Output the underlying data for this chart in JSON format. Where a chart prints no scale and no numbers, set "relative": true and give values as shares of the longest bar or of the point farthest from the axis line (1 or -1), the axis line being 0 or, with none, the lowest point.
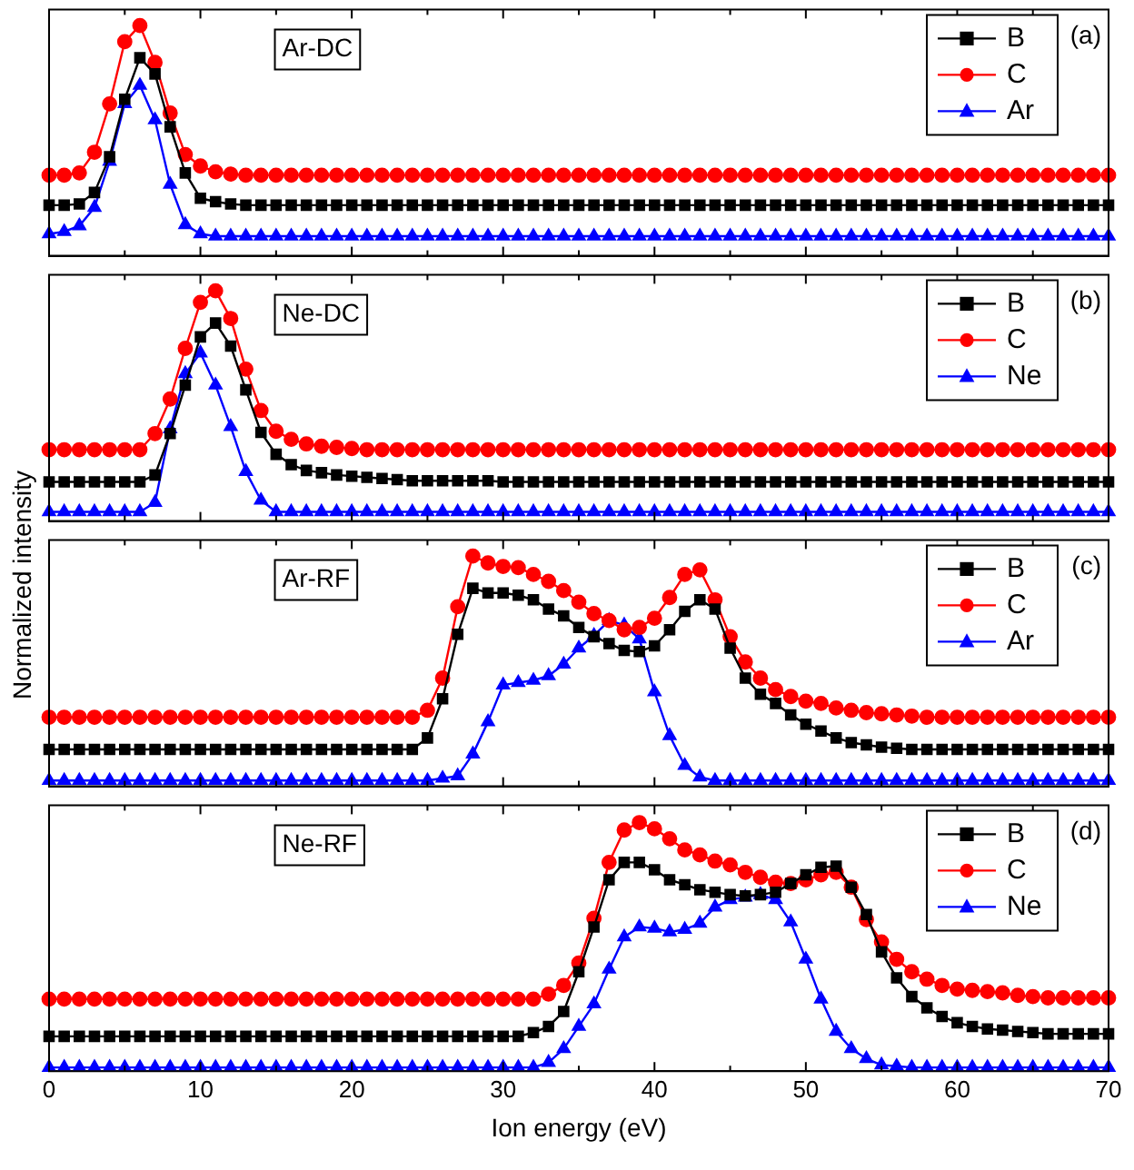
{
  "chart_data": [
    {
      "type": "line",
      "relative": true,
      "legend": "top right",
      "tick_labels": false,
      "annotations": [
        "Ar-DC",
        "(a)"
      ],
      "xlim": [
        0,
        70
      ],
      "xticks": [
        0,
        {
          "value": 5,
          "label": null
        },
        10,
        {
          "value": 15,
          "label": null
        },
        20,
        {
          "value": 25,
          "label": null
        },
        30,
        {
          "value": 35,
          "label": null
        },
        40,
        {
          "value": 45,
          "label": null
        },
        50,
        {
          "value": 55,
          "label": null
        },
        60,
        {
          "value": 65,
          "label": null
        },
        70
      ],
      "x": [
        0,
        1,
        2,
        3,
        4,
        5,
        6,
        7,
        8,
        9,
        10,
        11,
        12,
        13,
        14,
        15,
        16,
        17,
        18,
        19,
        20,
        21,
        22,
        23,
        24,
        25,
        26,
        27,
        28,
        29,
        30,
        31,
        32,
        33,
        34,
        35,
        36,
        37,
        38,
        39,
        40,
        41,
        42,
        43,
        44,
        45,
        46,
        47,
        48,
        49,
        50,
        51,
        52,
        53,
        54,
        55,
        56,
        57,
        58,
        59,
        60,
        61,
        62,
        63,
        64,
        65,
        66,
        67,
        68,
        69,
        70
      ],
      "series": [
        {
          "name": "B",
          "color": "#000000",
          "marker": "square",
          "values": [
            0.22,
            0.22,
            0.225,
            0.275,
            0.43,
            0.68,
            0.86,
            0.79,
            0.56,
            0.36,
            0.25,
            0.235,
            0.225,
            0.22,
            0.22,
            0.22,
            0.22,
            0.22,
            0.22,
            0.22,
            0.22,
            0.22,
            0.22,
            0.22,
            0.22,
            0.22,
            0.22,
            0.22,
            0.22,
            0.22,
            0.22,
            0.22,
            0.22,
            0.22,
            0.22,
            0.22,
            0.22,
            0.22,
            0.22,
            0.22,
            0.22,
            0.22,
            0.22,
            0.22,
            0.22,
            0.22,
            0.22,
            0.22,
            0.22,
            0.22,
            0.22,
            0.22,
            0.22,
            0.22,
            0.22,
            0.22,
            0.22,
            0.22,
            0.22,
            0.22,
            0.22,
            0.22,
            0.22,
            0.22,
            0.22,
            0.22,
            0.22,
            0.22,
            0.22,
            0.22,
            0.22
          ]
        },
        {
          "name": "C",
          "color": "#ff0000",
          "marker": "circle",
          "values": [
            0.35,
            0.35,
            0.36,
            0.45,
            0.66,
            0.93,
            1,
            0.84,
            0.62,
            0.44,
            0.39,
            0.365,
            0.355,
            0.35,
            0.35,
            0.35,
            0.35,
            0.35,
            0.35,
            0.35,
            0.35,
            0.35,
            0.35,
            0.35,
            0.35,
            0.35,
            0.35,
            0.35,
            0.35,
            0.35,
            0.35,
            0.35,
            0.35,
            0.35,
            0.35,
            0.35,
            0.35,
            0.35,
            0.35,
            0.35,
            0.35,
            0.35,
            0.35,
            0.35,
            0.35,
            0.35,
            0.35,
            0.35,
            0.35,
            0.35,
            0.35,
            0.35,
            0.35,
            0.35,
            0.35,
            0.35,
            0.35,
            0.35,
            0.35,
            0.35,
            0.35,
            0.35,
            0.35,
            0.35,
            0.35,
            0.35,
            0.35,
            0.35,
            0.35,
            0.35,
            0.35
          ]
        },
        {
          "name": "Ar",
          "color": "#0000ff",
          "marker": "triangle",
          "values": [
            0.095,
            0.105,
            0.13,
            0.21,
            0.41,
            0.66,
            0.74,
            0.59,
            0.31,
            0.135,
            0.095,
            0.085,
            0.085,
            0.085,
            0.085,
            0.085,
            0.085,
            0.085,
            0.085,
            0.085,
            0.085,
            0.085,
            0.085,
            0.085,
            0.085,
            0.085,
            0.085,
            0.085,
            0.085,
            0.085,
            0.085,
            0.085,
            0.085,
            0.085,
            0.085,
            0.085,
            0.085,
            0.085,
            0.085,
            0.085,
            0.085,
            0.085,
            0.085,
            0.085,
            0.085,
            0.085,
            0.085,
            0.085,
            0.085,
            0.085,
            0.085,
            0.085,
            0.085,
            0.085,
            0.085,
            0.085,
            0.085,
            0.085,
            0.085,
            0.085,
            0.085,
            0.085,
            0.085,
            0.085,
            0.085,
            0.085,
            0.085,
            0.085,
            0.085,
            0.085,
            0.085
          ]
        }
      ]
    },
    {
      "type": "line",
      "relative": true,
      "legend": "top right",
      "tick_labels": false,
      "annotations": [
        "Ne-DC",
        "(b)"
      ],
      "xlim": [
        0,
        70
      ],
      "xticks": [
        0,
        {
          "value": 5,
          "label": null
        },
        10,
        {
          "value": 15,
          "label": null
        },
        20,
        {
          "value": 25,
          "label": null
        },
        30,
        {
          "value": 35,
          "label": null
        },
        40,
        {
          "value": 45,
          "label": null
        },
        50,
        {
          "value": 55,
          "label": null
        },
        60,
        {
          "value": 65,
          "label": null
        },
        70
      ],
      "x": [
        0,
        1,
        2,
        3,
        4,
        5,
        6,
        7,
        8,
        9,
        10,
        11,
        12,
        13,
        14,
        15,
        16,
        17,
        18,
        19,
        20,
        21,
        22,
        23,
        24,
        25,
        26,
        27,
        28,
        29,
        30,
        31,
        32,
        33,
        34,
        35,
        36,
        37,
        38,
        39,
        40,
        41,
        42,
        43,
        44,
        45,
        46,
        47,
        48,
        49,
        50,
        51,
        52,
        53,
        54,
        55,
        56,
        57,
        58,
        59,
        60,
        61,
        62,
        63,
        64,
        65,
        66,
        67,
        68,
        69,
        70
      ],
      "series": [
        {
          "name": "B",
          "color": "#000000",
          "marker": "square",
          "values": [
            0.17,
            0.17,
            0.17,
            0.17,
            0.17,
            0.17,
            0.17,
            0.2,
            0.38,
            0.59,
            0.8,
            0.86,
            0.76,
            0.57,
            0.385,
            0.29,
            0.245,
            0.22,
            0.21,
            0.2,
            0.195,
            0.19,
            0.185,
            0.18,
            0.175,
            0.175,
            0.175,
            0.175,
            0.175,
            0.175,
            0.17,
            0.17,
            0.17,
            0.17,
            0.17,
            0.17,
            0.17,
            0.17,
            0.17,
            0.17,
            0.17,
            0.17,
            0.17,
            0.17,
            0.17,
            0.17,
            0.17,
            0.17,
            0.17,
            0.17,
            0.17,
            0.17,
            0.17,
            0.17,
            0.17,
            0.17,
            0.17,
            0.17,
            0.17,
            0.17,
            0.17,
            0.17,
            0.17,
            0.17,
            0.17,
            0.17,
            0.17,
            0.17,
            0.17,
            0.17,
            0.17
          ]
        },
        {
          "name": "C",
          "color": "#ff0000",
          "marker": "circle",
          "values": [
            0.31,
            0.31,
            0.31,
            0.31,
            0.31,
            0.31,
            0.31,
            0.38,
            0.53,
            0.75,
            0.95,
            1,
            0.88,
            0.66,
            0.48,
            0.39,
            0.355,
            0.335,
            0.325,
            0.32,
            0.315,
            0.31,
            0.31,
            0.31,
            0.31,
            0.31,
            0.31,
            0.31,
            0.31,
            0.31,
            0.31,
            0.31,
            0.31,
            0.31,
            0.31,
            0.31,
            0.31,
            0.31,
            0.31,
            0.31,
            0.31,
            0.31,
            0.31,
            0.31,
            0.31,
            0.31,
            0.31,
            0.31,
            0.31,
            0.31,
            0.31,
            0.31,
            0.31,
            0.31,
            0.31,
            0.31,
            0.31,
            0.31,
            0.31,
            0.31,
            0.31,
            0.31,
            0.31,
            0.31,
            0.31,
            0.31,
            0.31,
            0.31,
            0.31,
            0.31,
            0.31
          ]
        },
        {
          "name": "Ne",
          "color": "#0000ff",
          "marker": "triangle",
          "values": [
            0.04,
            0.04,
            0.04,
            0.04,
            0.04,
            0.04,
            0.04,
            0.08,
            0.4,
            0.64,
            0.73,
            0.59,
            0.41,
            0.215,
            0.09,
            0.04,
            0.04,
            0.04,
            0.04,
            0.04,
            0.04,
            0.04,
            0.04,
            0.04,
            0.04,
            0.04,
            0.04,
            0.04,
            0.04,
            0.04,
            0.04,
            0.04,
            0.04,
            0.04,
            0.04,
            0.04,
            0.04,
            0.04,
            0.04,
            0.04,
            0.04,
            0.04,
            0.04,
            0.04,
            0.04,
            0.04,
            0.04,
            0.04,
            0.04,
            0.04,
            0.04,
            0.04,
            0.04,
            0.04,
            0.04,
            0.04,
            0.04,
            0.04,
            0.04,
            0.04,
            0.04,
            0.04,
            0.04,
            0.04,
            0.04,
            0.04,
            0.04,
            0.04,
            0.04,
            0.04,
            0.04
          ]
        }
      ]
    },
    {
      "type": "line",
      "relative": true,
      "legend": "top right",
      "tick_labels": false,
      "ylabel": "Normalized intensity",
      "annotations": [
        "Ar-RF",
        "(c)"
      ],
      "xlim": [
        0,
        70
      ],
      "xticks": [
        0,
        {
          "value": 5,
          "label": null
        },
        10,
        {
          "value": 15,
          "label": null
        },
        20,
        {
          "value": 25,
          "label": null
        },
        30,
        {
          "value": 35,
          "label": null
        },
        40,
        {
          "value": 45,
          "label": null
        },
        50,
        {
          "value": 55,
          "label": null
        },
        60,
        {
          "value": 65,
          "label": null
        },
        70
      ],
      "x": [
        0,
        1,
        2,
        3,
        4,
        5,
        6,
        7,
        8,
        9,
        10,
        11,
        12,
        13,
        14,
        15,
        16,
        17,
        18,
        19,
        20,
        21,
        22,
        23,
        24,
        25,
        26,
        27,
        28,
        29,
        30,
        31,
        32,
        33,
        34,
        35,
        36,
        37,
        38,
        39,
        40,
        41,
        42,
        43,
        44,
        45,
        46,
        47,
        48,
        49,
        50,
        51,
        52,
        53,
        54,
        55,
        56,
        57,
        58,
        59,
        60,
        61,
        62,
        63,
        64,
        65,
        66,
        67,
        68,
        69,
        70
      ],
      "series": [
        {
          "name": "B",
          "color": "#000000",
          "marker": "square",
          "values": [
            0.16,
            0.16,
            0.16,
            0.16,
            0.16,
            0.16,
            0.16,
            0.16,
            0.16,
            0.16,
            0.16,
            0.16,
            0.16,
            0.16,
            0.16,
            0.16,
            0.16,
            0.16,
            0.16,
            0.16,
            0.16,
            0.16,
            0.16,
            0.16,
            0.16,
            0.21,
            0.38,
            0.66,
            0.86,
            0.84,
            0.84,
            0.83,
            0.81,
            0.77,
            0.74,
            0.69,
            0.65,
            0.62,
            0.59,
            0.585,
            0.61,
            0.68,
            0.76,
            0.81,
            0.77,
            0.6,
            0.47,
            0.4,
            0.36,
            0.31,
            0.27,
            0.24,
            0.21,
            0.19,
            0.18,
            0.17,
            0.165,
            0.16,
            0.16,
            0.16,
            0.16,
            0.16,
            0.16,
            0.16,
            0.16,
            0.16,
            0.16,
            0.16,
            0.16,
            0.16,
            0.16
          ]
        },
        {
          "name": "C",
          "color": "#ff0000",
          "marker": "circle",
          "values": [
            0.3,
            0.3,
            0.3,
            0.3,
            0.3,
            0.3,
            0.3,
            0.3,
            0.3,
            0.3,
            0.3,
            0.3,
            0.3,
            0.3,
            0.3,
            0.3,
            0.3,
            0.3,
            0.3,
            0.3,
            0.3,
            0.3,
            0.3,
            0.3,
            0.3,
            0.33,
            0.47,
            0.78,
            1,
            0.97,
            0.955,
            0.95,
            0.92,
            0.89,
            0.85,
            0.8,
            0.75,
            0.72,
            0.68,
            0.69,
            0.73,
            0.82,
            0.92,
            0.94,
            0.81,
            0.65,
            0.54,
            0.47,
            0.42,
            0.39,
            0.37,
            0.36,
            0.34,
            0.33,
            0.32,
            0.315,
            0.31,
            0.305,
            0.3,
            0.3,
            0.3,
            0.3,
            0.3,
            0.3,
            0.3,
            0.3,
            0.3,
            0.3,
            0.3,
            0.3,
            0.3
          ]
        },
        {
          "name": "Ar",
          "color": "#0000ff",
          "marker": "triangle",
          "values": [
            0.025,
            0.025,
            0.025,
            0.025,
            0.025,
            0.025,
            0.025,
            0.025,
            0.025,
            0.025,
            0.025,
            0.025,
            0.025,
            0.025,
            0.025,
            0.025,
            0.025,
            0.025,
            0.025,
            0.025,
            0.025,
            0.025,
            0.025,
            0.025,
            0.025,
            0.025,
            0.035,
            0.045,
            0.14,
            0.28,
            0.44,
            0.45,
            0.46,
            0.48,
            0.53,
            0.6,
            0.655,
            0.72,
            0.7,
            0.64,
            0.41,
            0.22,
            0.09,
            0.04,
            0.025,
            0.025,
            0.025,
            0.025,
            0.025,
            0.025,
            0.025,
            0.025,
            0.025,
            0.025,
            0.025,
            0.025,
            0.025,
            0.025,
            0.025,
            0.025,
            0.025,
            0.025,
            0.025,
            0.025,
            0.025,
            0.025,
            0.025,
            0.025,
            0.025,
            0.025,
            0.025
          ]
        }
      ]
    },
    {
      "type": "line",
      "relative": true,
      "legend": "top right",
      "tick_labels": "x",
      "xlabel": "Ion energy (eV)",
      "annotations": [
        "Ne-RF",
        "(d)"
      ],
      "xlim": [
        0,
        70
      ],
      "xticks": [
        0,
        {
          "value": 5,
          "label": null
        },
        10,
        {
          "value": 15,
          "label": null
        },
        20,
        {
          "value": 25,
          "label": null
        },
        30,
        {
          "value": 35,
          "label": null
        },
        40,
        {
          "value": 45,
          "label": null
        },
        50,
        {
          "value": 55,
          "label": null
        },
        60,
        {
          "value": 65,
          "label": null
        },
        70
      ],
      "x": [
        0,
        1,
        2,
        3,
        4,
        5,
        6,
        7,
        8,
        9,
        10,
        11,
        12,
        13,
        14,
        15,
        16,
        17,
        18,
        19,
        20,
        21,
        22,
        23,
        24,
        25,
        26,
        27,
        28,
        29,
        30,
        31,
        32,
        33,
        34,
        35,
        36,
        37,
        38,
        39,
        40,
        41,
        42,
        43,
        44,
        45,
        46,
        47,
        48,
        49,
        50,
        51,
        52,
        53,
        54,
        55,
        56,
        57,
        58,
        59,
        60,
        61,
        62,
        63,
        64,
        65,
        66,
        67,
        68,
        69,
        70
      ],
      "series": [
        {
          "name": "B",
          "color": "#000000",
          "marker": "square",
          "values": [
            0.14,
            0.14,
            0.14,
            0.14,
            0.14,
            0.14,
            0.14,
            0.14,
            0.14,
            0.14,
            0.14,
            0.14,
            0.14,
            0.14,
            0.14,
            0.14,
            0.14,
            0.14,
            0.14,
            0.14,
            0.14,
            0.14,
            0.14,
            0.14,
            0.14,
            0.14,
            0.14,
            0.14,
            0.14,
            0.14,
            0.14,
            0.14,
            0.155,
            0.18,
            0.24,
            0.4,
            0.58,
            0.77,
            0.84,
            0.84,
            0.81,
            0.77,
            0.75,
            0.73,
            0.72,
            0.71,
            0.705,
            0.71,
            0.72,
            0.755,
            0.79,
            0.82,
            0.825,
            0.74,
            0.63,
            0.48,
            0.375,
            0.3,
            0.255,
            0.22,
            0.195,
            0.18,
            0.17,
            0.165,
            0.16,
            0.155,
            0.15,
            0.15,
            0.15,
            0.15,
            0.15
          ]
        },
        {
          "name": "C",
          "color": "#ff0000",
          "marker": "circle",
          "values": [
            0.29,
            0.29,
            0.29,
            0.29,
            0.29,
            0.29,
            0.29,
            0.29,
            0.29,
            0.29,
            0.29,
            0.29,
            0.29,
            0.29,
            0.29,
            0.29,
            0.29,
            0.29,
            0.29,
            0.29,
            0.29,
            0.29,
            0.29,
            0.29,
            0.29,
            0.29,
            0.29,
            0.29,
            0.29,
            0.29,
            0.29,
            0.29,
            0.29,
            0.31,
            0.345,
            0.435,
            0.615,
            0.84,
            0.97,
            1,
            0.975,
            0.935,
            0.89,
            0.87,
            0.845,
            0.83,
            0.8,
            0.78,
            0.76,
            0.755,
            0.77,
            0.79,
            0.8,
            0.74,
            0.61,
            0.52,
            0.45,
            0.4,
            0.37,
            0.345,
            0.33,
            0.325,
            0.32,
            0.315,
            0.305,
            0.3,
            0.295,
            0.295,
            0.295,
            0.295,
            0.295
          ]
        },
        {
          "name": "Ne",
          "color": "#0000ff",
          "marker": "triangle",
          "values": [
            0.015,
            0.015,
            0.015,
            0.015,
            0.015,
            0.015,
            0.015,
            0.015,
            0.015,
            0.015,
            0.015,
            0.015,
            0.015,
            0.015,
            0.015,
            0.015,
            0.015,
            0.015,
            0.015,
            0.015,
            0.015,
            0.015,
            0.015,
            0.015,
            0.015,
            0.015,
            0.015,
            0.015,
            0.015,
            0.015,
            0.015,
            0.015,
            0.015,
            0.035,
            0.09,
            0.18,
            0.27,
            0.41,
            0.54,
            0.58,
            0.575,
            0.56,
            0.57,
            0.595,
            0.66,
            0.69,
            0.7,
            0.71,
            0.69,
            0.6,
            0.45,
            0.29,
            0.16,
            0.09,
            0.05,
            0.025,
            0.02,
            0.015,
            0.015,
            0.015,
            0.015,
            0.015,
            0.015,
            0.015,
            0.015,
            0.015,
            0.015,
            0.015,
            0.015,
            0.015,
            0.015
          ]
        }
      ]
    }
  ]
}
